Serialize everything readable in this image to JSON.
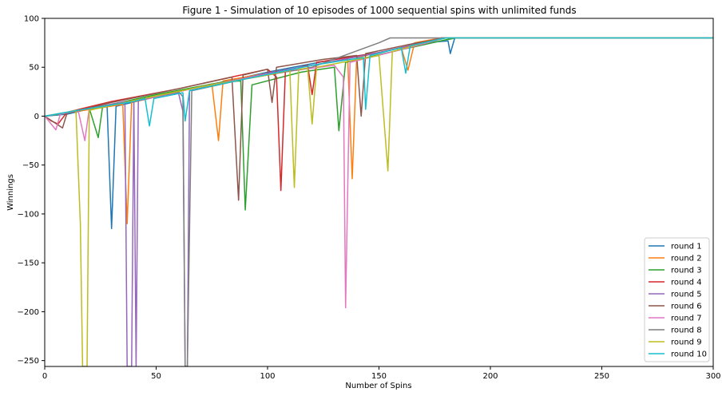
{
  "chart_data": {
    "type": "line",
    "title": "Figure 1 - Simulation of 10 episodes of 1000 sequential spins with unlimited funds",
    "xlabel": "Number of Spins",
    "ylabel": "Winnings",
    "xlim": [
      0,
      300
    ],
    "ylim": [
      -256,
      100
    ],
    "xticks": [
      0,
      50,
      100,
      150,
      200,
      250,
      300
    ],
    "yticks": [
      -250,
      -200,
      -150,
      -100,
      -50,
      0,
      50,
      100
    ],
    "grid": false,
    "legend": "lower-right",
    "series": [
      {
        "name": "round 1",
        "color": "#1f77b4",
        "points": [
          [
            0,
            0
          ],
          [
            10,
            2
          ],
          [
            25,
            10
          ],
          [
            28,
            10
          ],
          [
            30,
            -115
          ],
          [
            32,
            10
          ],
          [
            50,
            20
          ],
          [
            70,
            30
          ],
          [
            100,
            45
          ],
          [
            130,
            58
          ],
          [
            150,
            65
          ],
          [
            170,
            75
          ],
          [
            181,
            77
          ],
          [
            182,
            64
          ],
          [
            184,
            80
          ],
          [
            300,
            80
          ]
        ]
      },
      {
        "name": "round 2",
        "color": "#ff7f0e",
        "points": [
          [
            0,
            0
          ],
          [
            15,
            5
          ],
          [
            35,
            12
          ],
          [
            37,
            -110
          ],
          [
            39,
            14
          ],
          [
            60,
            25
          ],
          [
            75,
            33
          ],
          [
            78,
            -25
          ],
          [
            80,
            36
          ],
          [
            110,
            48
          ],
          [
            136,
            58
          ],
          [
            138,
            -64
          ],
          [
            140,
            60
          ],
          [
            160,
            70
          ],
          [
            163,
            47
          ],
          [
            166,
            75
          ],
          [
            178,
            80
          ],
          [
            300,
            80
          ]
        ]
      },
      {
        "name": "round 3",
        "color": "#2ca02c",
        "points": [
          [
            0,
            0
          ],
          [
            20,
            8
          ],
          [
            24,
            -22
          ],
          [
            26,
            10
          ],
          [
            50,
            22
          ],
          [
            80,
            35
          ],
          [
            88,
            36
          ],
          [
            90,
            -96
          ],
          [
            93,
            32
          ],
          [
            115,
            45
          ],
          [
            130,
            50
          ],
          [
            132,
            -15
          ],
          [
            135,
            55
          ],
          [
            160,
            68
          ],
          [
            180,
            78
          ],
          [
            185,
            80
          ],
          [
            300,
            80
          ]
        ]
      },
      {
        "name": "round 4",
        "color": "#d62728",
        "points": [
          [
            0,
            0
          ],
          [
            3,
            -5
          ],
          [
            6,
            -8
          ],
          [
            10,
            4
          ],
          [
            30,
            15
          ],
          [
            60,
            28
          ],
          [
            80,
            38
          ],
          [
            100,
            48
          ],
          [
            104,
            40
          ],
          [
            106,
            -76
          ],
          [
            108,
            46
          ],
          [
            118,
            52
          ],
          [
            120,
            22
          ],
          [
            122,
            55
          ],
          [
            150,
            65
          ],
          [
            175,
            78
          ],
          [
            178,
            80
          ],
          [
            300,
            80
          ]
        ]
      },
      {
        "name": "round 5",
        "color": "#9467bd",
        "points": [
          [
            0,
            0
          ],
          [
            20,
            8
          ],
          [
            36,
            15
          ],
          [
            37,
            -256
          ],
          [
            39,
            -256
          ],
          [
            40,
            16
          ],
          [
            41,
            -256
          ],
          [
            42,
            16
          ],
          [
            55,
            22
          ],
          [
            60,
            24
          ],
          [
            62,
            5
          ],
          [
            63,
            -256
          ],
          [
            64,
            -256
          ],
          [
            65,
            26
          ],
          [
            80,
            34
          ],
          [
            100,
            44
          ],
          [
            125,
            54
          ],
          [
            150,
            65
          ],
          [
            170,
            75
          ],
          [
            178,
            80
          ],
          [
            300,
            80
          ]
        ]
      },
      {
        "name": "round 6",
        "color": "#8c564b",
        "points": [
          [
            0,
            0
          ],
          [
            8,
            -12
          ],
          [
            10,
            3
          ],
          [
            30,
            14
          ],
          [
            60,
            28
          ],
          [
            84,
            40
          ],
          [
            87,
            -86
          ],
          [
            89,
            42
          ],
          [
            100,
            48
          ],
          [
            102,
            14
          ],
          [
            104,
            50
          ],
          [
            125,
            58
          ],
          [
            140,
            62
          ],
          [
            142,
            0
          ],
          [
            144,
            64
          ],
          [
            165,
            74
          ],
          [
            180,
            80
          ],
          [
            300,
            80
          ]
        ]
      },
      {
        "name": "round 7",
        "color": "#e377c2",
        "points": [
          [
            0,
            0
          ],
          [
            5,
            -14
          ],
          [
            7,
            2
          ],
          [
            15,
            6
          ],
          [
            18,
            -25
          ],
          [
            20,
            8
          ],
          [
            50,
            20
          ],
          [
            70,
            30
          ],
          [
            100,
            43
          ],
          [
            130,
            52
          ],
          [
            134,
            40
          ],
          [
            135,
            -196
          ],
          [
            137,
            55
          ],
          [
            160,
            68
          ],
          [
            175,
            77
          ],
          [
            180,
            80
          ],
          [
            300,
            80
          ]
        ]
      },
      {
        "name": "round 8",
        "color": "#7f7f7f",
        "points": [
          [
            0,
            0
          ],
          [
            20,
            8
          ],
          [
            40,
            16
          ],
          [
            60,
            25
          ],
          [
            62,
            20
          ],
          [
            63,
            -256
          ],
          [
            64,
            -256
          ],
          [
            66,
            26
          ],
          [
            90,
            38
          ],
          [
            120,
            50
          ],
          [
            150,
            75
          ],
          [
            155,
            80
          ],
          [
            300,
            80
          ]
        ]
      },
      {
        "name": "round 9",
        "color": "#bcbd22",
        "points": [
          [
            0,
            0
          ],
          [
            10,
            4
          ],
          [
            14,
            6
          ],
          [
            16,
            -110
          ],
          [
            17,
            -256
          ],
          [
            19,
            -256
          ],
          [
            20,
            6
          ],
          [
            40,
            16
          ],
          [
            70,
            30
          ],
          [
            100,
            42
          ],
          [
            110,
            47
          ],
          [
            112,
            -73
          ],
          [
            114,
            48
          ],
          [
            118,
            49
          ],
          [
            120,
            -8
          ],
          [
            122,
            50
          ],
          [
            150,
            62
          ],
          [
            154,
            -56
          ],
          [
            156,
            66
          ],
          [
            170,
            75
          ],
          [
            180,
            80
          ],
          [
            300,
            80
          ]
        ]
      },
      {
        "name": "round 10",
        "color": "#17becf",
        "points": [
          [
            0,
            0
          ],
          [
            15,
            6
          ],
          [
            40,
            15
          ],
          [
            45,
            18
          ],
          [
            47,
            -10
          ],
          [
            49,
            18
          ],
          [
            62,
            24
          ],
          [
            63,
            -5
          ],
          [
            65,
            26
          ],
          [
            90,
            38
          ],
          [
            120,
            52
          ],
          [
            143,
            60
          ],
          [
            144,
            7
          ],
          [
            146,
            62
          ],
          [
            160,
            70
          ],
          [
            162,
            44
          ],
          [
            164,
            72
          ],
          [
            180,
            80
          ],
          [
            300,
            80
          ]
        ]
      }
    ]
  }
}
